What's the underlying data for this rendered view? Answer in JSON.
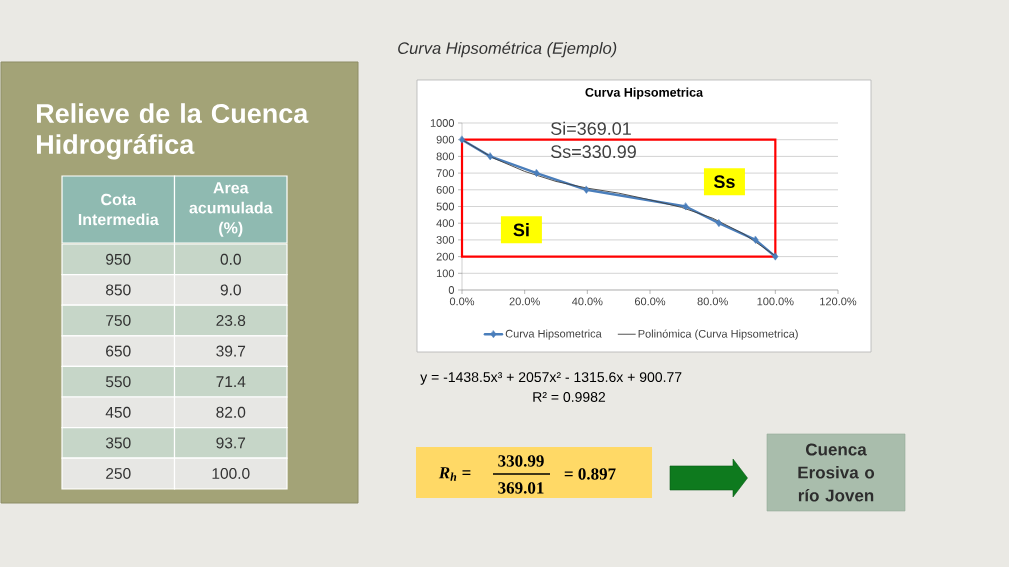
{
  "chart_data": {
    "type": "line",
    "title": "Curva Hipsometrica",
    "annotations": [
      "Relieve de la Cuenca Hidrográfica",
      "Cota Intermedia",
      "Area acumulada (%)",
      "950",
      "0.0",
      "850",
      "9.0",
      "750",
      "23.8",
      "650",
      "39.7",
      "550",
      "71.4",
      "450",
      "82.0",
      "350",
      "93.7",
      "250",
      "100.0",
      "Curva Hipsométrica (Ejemplo)",
      "Si=369.01",
      "Ss=330.99",
      "Si",
      "Ss",
      "y = -1438.5x³ + 2057x² - 1315.6x + 900.77",
      "R² = 0.9982",
      "R$_{h}$ =",
      "330.99",
      "369.01",
      "= 0.897",
      "Cuenca Erosiva o río Joven"
    ],
    "series": [
      {
        "name": "Curva Hipsometrica",
        "color": "#4a7ebb",
        "x": [
          0,
          9,
          23.8,
          39.7,
          71.4,
          82,
          93.7,
          100
        ],
        "values": [
          900,
          800,
          700,
          600,
          500,
          400,
          300,
          200
        ]
      },
      {
        "name": "Polinómica (Curva Hipsometrica)",
        "color": "#404040",
        "marker": "none",
        "x": [
          0,
          10,
          20,
          30,
          40,
          50,
          60,
          70,
          80,
          90,
          100
        ],
        "values": [
          900,
          790,
          710,
          650,
          610,
          580,
          540,
          495,
          430,
          335,
          205
        ]
      }
    ],
    "marker": "diamond",
    "xlim": [
      0,
      120
    ],
    "xticks": [
      {
        "value": 0,
        "label": "0.0%"
      },
      {
        "value": 20,
        "label": "20.0%"
      },
      {
        "value": 40,
        "label": "40.0%"
      },
      {
        "value": 60,
        "label": "60.0%"
      },
      {
        "value": 80,
        "label": "80.0%"
      },
      {
        "value": 100,
        "label": "100.0%"
      },
      {
        "value": 120,
        "label": "120.0%"
      }
    ],
    "ylim": [
      0,
      1000
    ],
    "yticks": [
      0,
      100,
      200,
      300,
      400,
      500,
      600,
      700,
      800,
      900,
      1000
    ],
    "grid": "y",
    "legend": "bottom"
  }
}
